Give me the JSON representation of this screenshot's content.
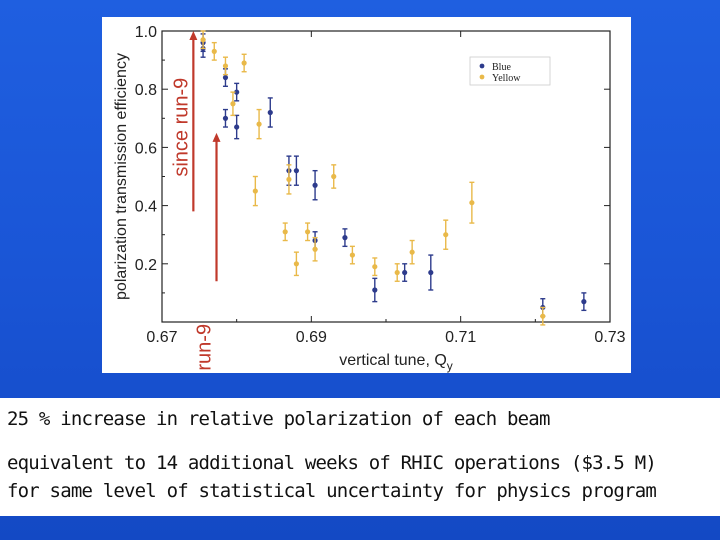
{
  "chart_data": {
    "type": "scatter",
    "xlabel": "vertical tune, Q",
    "xlabel_subscript": "y",
    "ylabel": "polarization transmission efficiency",
    "xlim": [
      0.67,
      0.73
    ],
    "ylim": [
      0.0,
      1.0
    ],
    "x_ticks": [
      "0.67",
      "0.69",
      "0.71",
      "0.73"
    ],
    "y_ticks": [
      "0.2",
      "0.4",
      "0.6",
      "0.8",
      "1.0"
    ],
    "grid": false,
    "legend_position": "top-right",
    "series": [
      {
        "name": "Blue",
        "color": "#2d3b8c",
        "points": [
          {
            "x": 0.6755,
            "y": 0.96,
            "err": 0.03
          },
          {
            "x": 0.6755,
            "y": 0.94,
            "err": 0.03
          },
          {
            "x": 0.6785,
            "y": 0.84,
            "err": 0.03
          },
          {
            "x": 0.6785,
            "y": 0.7,
            "err": 0.03
          },
          {
            "x": 0.68,
            "y": 0.79,
            "err": 0.03
          },
          {
            "x": 0.68,
            "y": 0.67,
            "err": 0.04
          },
          {
            "x": 0.6845,
            "y": 0.72,
            "err": 0.05
          },
          {
            "x": 0.687,
            "y": 0.52,
            "err": 0.05
          },
          {
            "x": 0.688,
            "y": 0.52,
            "err": 0.05
          },
          {
            "x": 0.6905,
            "y": 0.47,
            "err": 0.05
          },
          {
            "x": 0.6905,
            "y": 0.28,
            "err": 0.03
          },
          {
            "x": 0.6945,
            "y": 0.29,
            "err": 0.03
          },
          {
            "x": 0.6985,
            "y": 0.11,
            "err": 0.04
          },
          {
            "x": 0.7025,
            "y": 0.17,
            "err": 0.03
          },
          {
            "x": 0.706,
            "y": 0.17,
            "err": 0.06
          },
          {
            "x": 0.721,
            "y": 0.05,
            "err": 0.03
          },
          {
            "x": 0.7265,
            "y": 0.07,
            "err": 0.03
          }
        ]
      },
      {
        "name": "Yellow",
        "color": "#e9b949",
        "points": [
          {
            "x": 0.6755,
            "y": 0.97,
            "err": 0.03
          },
          {
            "x": 0.677,
            "y": 0.93,
            "err": 0.03
          },
          {
            "x": 0.6785,
            "y": 0.88,
            "err": 0.03
          },
          {
            "x": 0.6795,
            "y": 0.75,
            "err": 0.04
          },
          {
            "x": 0.681,
            "y": 0.89,
            "err": 0.03
          },
          {
            "x": 0.6825,
            "y": 0.45,
            "err": 0.05
          },
          {
            "x": 0.683,
            "y": 0.68,
            "err": 0.05
          },
          {
            "x": 0.6865,
            "y": 0.31,
            "err": 0.03
          },
          {
            "x": 0.687,
            "y": 0.49,
            "err": 0.05
          },
          {
            "x": 0.688,
            "y": 0.2,
            "err": 0.04
          },
          {
            "x": 0.6895,
            "y": 0.31,
            "err": 0.03
          },
          {
            "x": 0.6905,
            "y": 0.25,
            "err": 0.04
          },
          {
            "x": 0.693,
            "y": 0.5,
            "err": 0.04
          },
          {
            "x": 0.6955,
            "y": 0.23,
            "err": 0.03
          },
          {
            "x": 0.6985,
            "y": 0.19,
            "err": 0.03
          },
          {
            "x": 0.7015,
            "y": 0.17,
            "err": 0.03
          },
          {
            "x": 0.7035,
            "y": 0.24,
            "err": 0.04
          },
          {
            "x": 0.708,
            "y": 0.3,
            "err": 0.05
          },
          {
            "x": 0.7115,
            "y": 0.41,
            "err": 0.07
          },
          {
            "x": 0.721,
            "y": 0.02,
            "err": 0.03
          }
        ]
      }
    ],
    "annotations": [
      {
        "label": "since run-9",
        "color": "#c0392b",
        "x": 0.6742,
        "y_start": 0.38,
        "y_end": 1.0
      },
      {
        "label": "run-9",
        "color": "#c0392b",
        "x": 0.6773,
        "y_start": 0.14,
        "y_end": 0.65
      }
    ]
  },
  "text": {
    "line1": "25 % increase in relative polarization of each beam",
    "line2": "equivalent to 14 additional weeks of RHIC operations ($3.5 M)",
    "line3": "for same level of statistical uncertainty for physics program"
  }
}
